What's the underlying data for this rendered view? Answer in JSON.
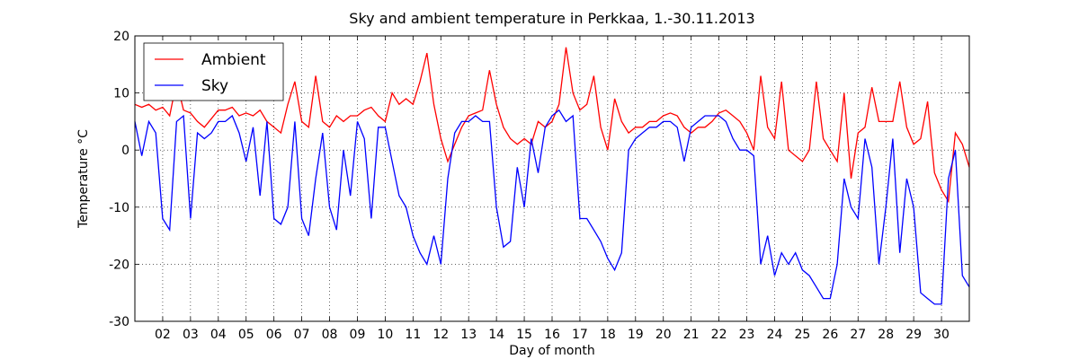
{
  "chart_data": {
    "type": "line",
    "title": "Sky and ambient temperature in Perkkaa, 1.-30.11.2013",
    "xlabel": "Day of month",
    "ylabel": "Temperature °C",
    "x": [
      1,
      1.25,
      1.5,
      1.75,
      2,
      2.25,
      2.5,
      2.75,
      3,
      3.25,
      3.5,
      3.75,
      4,
      4.25,
      4.5,
      4.75,
      5,
      5.25,
      5.5,
      5.75,
      6,
      6.25,
      6.5,
      6.75,
      7,
      7.25,
      7.5,
      7.75,
      8,
      8.25,
      8.5,
      8.75,
      9,
      9.25,
      9.5,
      9.75,
      10,
      10.25,
      10.5,
      10.75,
      11,
      11.25,
      11.5,
      11.75,
      12,
      12.25,
      12.5,
      12.75,
      13,
      13.25,
      13.5,
      13.75,
      14,
      14.25,
      14.5,
      14.75,
      15,
      15.25,
      15.5,
      15.75,
      16,
      16.25,
      16.5,
      16.75,
      17,
      17.25,
      17.5,
      17.75,
      18,
      18.25,
      18.5,
      18.75,
      19,
      19.25,
      19.5,
      19.75,
      20,
      20.25,
      20.5,
      20.75,
      21,
      21.25,
      21.5,
      21.75,
      22,
      22.25,
      22.5,
      22.75,
      23,
      23.25,
      23.5,
      23.75,
      24,
      24.25,
      24.5,
      24.75,
      25,
      25.25,
      25.5,
      25.75,
      26,
      26.25,
      26.5,
      26.75,
      27,
      27.25,
      27.5,
      27.75,
      28,
      28.25,
      28.5,
      28.75,
      29,
      29.25,
      29.5,
      29.75,
      30,
      30.25,
      30.5,
      30.75,
      31
    ],
    "series": [
      {
        "name": "Ambient",
        "color": "#ff0000",
        "values": [
          8,
          7.5,
          8,
          7,
          7.5,
          6,
          12,
          7,
          6.5,
          5,
          4,
          5.5,
          7,
          7,
          7.5,
          6,
          6.5,
          6,
          7,
          5,
          4,
          3,
          8,
          12,
          5,
          4,
          13,
          5,
          4,
          6,
          5,
          6,
          6,
          7,
          7.5,
          6,
          5,
          10,
          8,
          9,
          8,
          12,
          17,
          8,
          2,
          -2,
          1,
          4,
          6,
          6.5,
          7,
          14,
          8,
          4,
          2,
          1,
          2,
          1,
          5,
          4,
          5,
          8,
          18,
          10,
          7,
          8,
          13,
          4,
          0,
          9,
          5,
          3,
          4,
          4,
          5,
          5,
          6,
          6.5,
          6,
          4,
          3,
          4,
          4,
          5,
          6.5,
          7,
          6,
          5,
          3,
          0,
          13,
          4,
          2,
          12,
          0,
          -1,
          -2,
          0,
          12,
          2,
          0,
          -2,
          10,
          -5,
          3,
          4,
          11,
          5,
          5,
          5,
          12,
          4,
          1,
          2,
          8.5,
          -4,
          -7,
          -9,
          3,
          1,
          -3
        ]
      },
      {
        "name": "Sky",
        "color": "#0000ff",
        "values": [
          5,
          -1,
          5,
          3,
          -12,
          -14,
          5,
          6,
          -12,
          3,
          2,
          3,
          5,
          5,
          6,
          3,
          -2,
          4,
          -8,
          5,
          -12,
          -13,
          -10,
          5,
          -12,
          -15,
          -5,
          3,
          -10,
          -14,
          0,
          -8,
          5,
          2,
          -12,
          4,
          4,
          -2,
          -8,
          -10,
          -15,
          -18,
          -20,
          -15,
          -20,
          -5,
          3,
          5,
          5,
          6,
          5,
          5,
          -10,
          -17,
          -16,
          -3,
          -10,
          2,
          -4,
          4,
          6,
          7,
          5,
          6,
          -12,
          -12,
          -14,
          -16,
          -19,
          -21,
          -18,
          0,
          2,
          3,
          4,
          4,
          5,
          5,
          4,
          -2,
          4,
          5,
          6,
          6,
          6,
          5,
          2,
          0,
          0,
          -1,
          -20,
          -15,
          -22,
          -18,
          -20,
          -18,
          -21,
          -22,
          -24,
          -26,
          -26,
          -20,
          -5,
          -10,
          -12,
          2,
          -3,
          -20,
          -10,
          2,
          -18,
          -5,
          -10,
          -25,
          -26,
          -27,
          -27,
          -5,
          0,
          -22,
          -24
        ]
      }
    ],
    "xlim": [
      1,
      31
    ],
    "xticks": [
      {
        "value": 2,
        "label": "02"
      },
      {
        "value": 3,
        "label": "03"
      },
      {
        "value": 4,
        "label": "04"
      },
      {
        "value": 5,
        "label": "05"
      },
      {
        "value": 6,
        "label": "06"
      },
      {
        "value": 7,
        "label": "07"
      },
      {
        "value": 8,
        "label": "08"
      },
      {
        "value": 9,
        "label": "09"
      },
      10,
      11,
      12,
      13,
      14,
      15,
      16,
      17,
      18,
      19,
      20,
      21,
      22,
      23,
      24,
      25,
      26,
      27,
      28,
      29,
      30
    ],
    "ylim": [
      -30,
      20
    ],
    "yticks": [
      -30,
      -20,
      -10,
      0,
      10,
      20
    ],
    "grid": true,
    "legend": "upper left"
  }
}
